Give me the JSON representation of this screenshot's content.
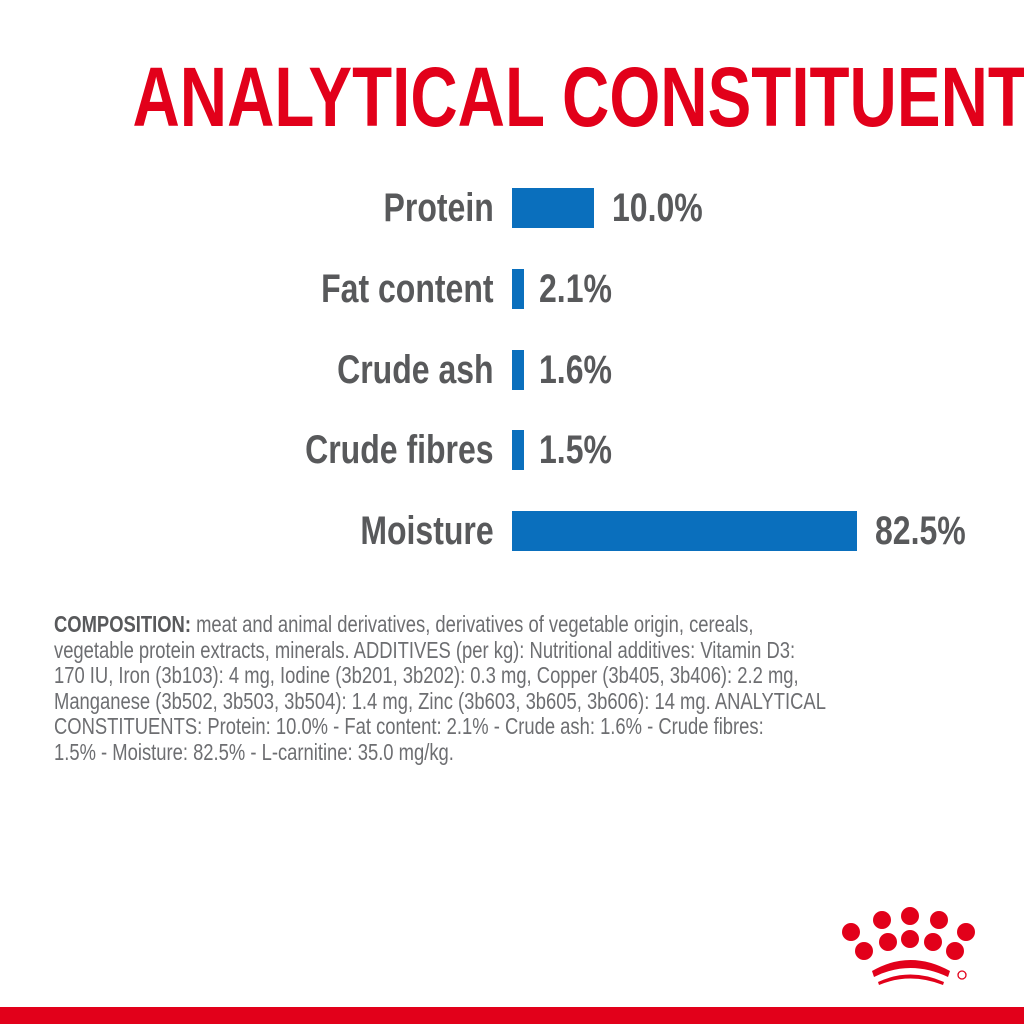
{
  "title": "ANALYTICAL CONSTITUENTS",
  "chart_data": {
    "type": "bar",
    "orientation": "horizontal",
    "categories": [
      "Protein",
      "Fat content",
      "Crude ash",
      "Crude fibres",
      "Moisture"
    ],
    "values": [
      10.0,
      2.1,
      1.6,
      1.5,
      82.5
    ],
    "value_labels": [
      "10.0%",
      "2.1%",
      "1.6%",
      "1.5%",
      "82.5%"
    ],
    "unit": "%",
    "bar_color": "#0a6fbd",
    "grid": false
  },
  "composition": {
    "heading": "COMPOSITION:",
    "lines": [
      " meat and animal derivatives, derivatives of vegetable origin, cereals,",
      "vegetable protein extracts, minerals. ADDITIVES (per kg): Nutritional additives: Vitamin D3:",
      "170 IU, Iron (3b103): 4 mg, Iodine (3b201, 3b202): 0.3 mg, Copper (3b405, 3b406): 2.2 mg,",
      "Manganese (3b502, 3b503, 3b504): 1.4 mg, Zinc (3b603, 3b605, 3b606): 14 mg. ANALYTICAL",
      "CONSTITUENTS: Protein: 10.0% - Fat content: 2.1% - Crude ash: 1.6% - Crude fibres:",
      "1.5% - Moisture: 82.5% - L-carnitine: 35.0 mg/kg."
    ]
  },
  "brand_color": "#e2001a",
  "logo": "royal-canin-crown-logo"
}
